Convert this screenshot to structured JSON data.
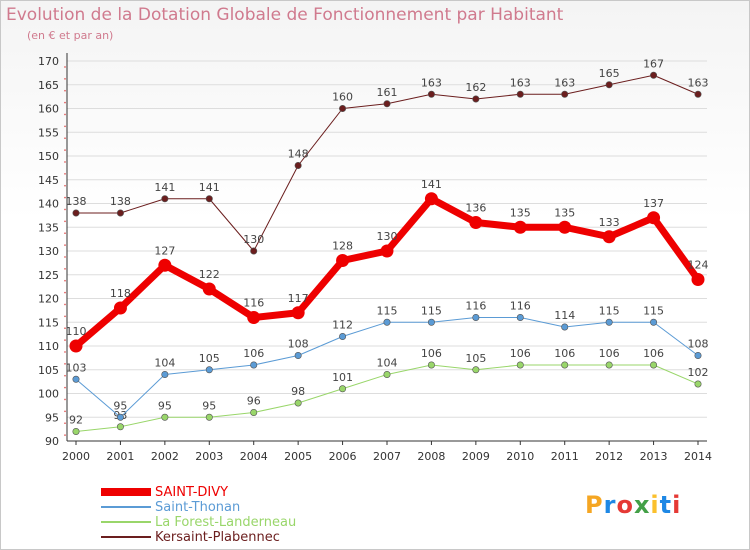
{
  "title": "Evolution de la Dotation Globale de Fonctionnement par Habitant",
  "subtitle": "(en € et par an)",
  "logo": {
    "letters": [
      "P",
      "r",
      "o",
      "x",
      "i",
      "t",
      "i"
    ],
    "colors": [
      "#f5a623",
      "#1e88e5",
      "#e53935",
      "#43a047",
      "#fbc02d",
      "#1e88e5",
      "#e53935"
    ]
  },
  "chart_data": {
    "type": "line",
    "title": "Evolution de la Dotation Globale de Fonctionnement par Habitant",
    "ylabel": "(en € et par an)",
    "xlabel": "",
    "x": [
      "2000",
      "2001",
      "2002",
      "2003",
      "2004",
      "2005",
      "2006",
      "2007",
      "2008",
      "2009",
      "2010",
      "2011",
      "2012",
      "2013",
      "2014"
    ],
    "ylim": [
      90,
      170
    ],
    "yticks": [
      90,
      95,
      100,
      105,
      110,
      115,
      120,
      125,
      130,
      135,
      140,
      145,
      150,
      155,
      160,
      165,
      170
    ],
    "grid": "horizontal",
    "legend_position": "bottom-left",
    "series": [
      {
        "name": "Kersaint-Plabennec",
        "color": "#6b1e1e",
        "width": 1,
        "values": [
          138,
          138,
          141,
          141,
          130,
          148,
          160,
          161,
          163,
          162,
          163,
          163,
          165,
          167,
          163
        ]
      },
      {
        "name": "La Forest-Landerneau",
        "color": "#99d66a",
        "width": 1,
        "values": [
          92,
          93,
          95,
          95,
          96,
          98,
          101,
          104,
          106,
          105,
          106,
          106,
          106,
          106,
          102
        ]
      },
      {
        "name": "Saint-Thonan",
        "color": "#5b9bd5",
        "width": 1,
        "values": [
          103,
          95,
          104,
          105,
          106,
          108,
          112,
          115,
          115,
          116,
          116,
          114,
          115,
          115,
          108
        ]
      },
      {
        "name": "SAINT-DIVY",
        "color": "#ee0000",
        "width": 7,
        "values": [
          110,
          118,
          127,
          122,
          116,
          117,
          128,
          130,
          141,
          136,
          135,
          135,
          133,
          137,
          124
        ]
      }
    ]
  }
}
